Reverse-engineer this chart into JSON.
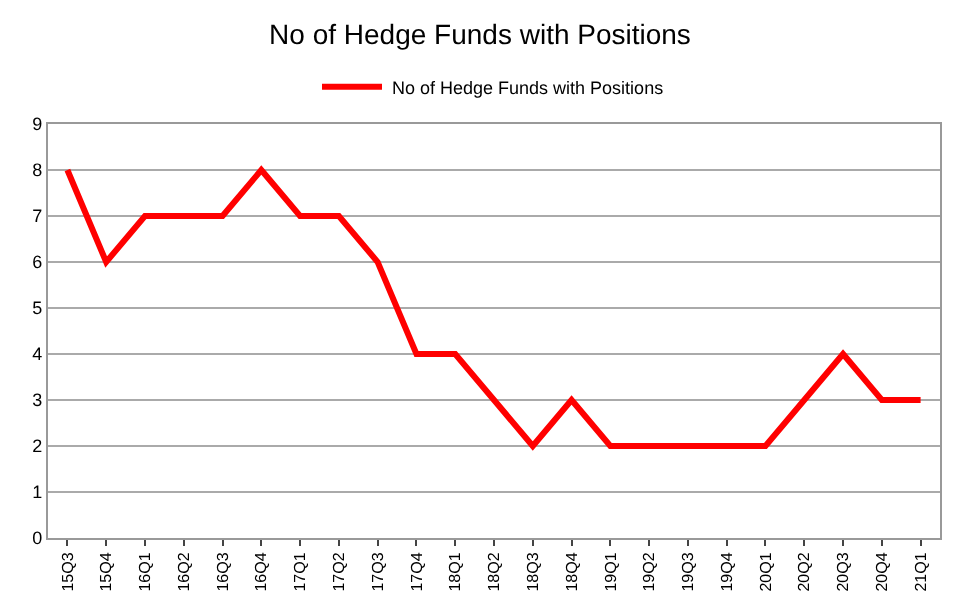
{
  "chart_data": {
    "type": "line",
    "title": "No of Hedge Funds with Positions",
    "categories": [
      "15Q3",
      "15Q4",
      "16Q1",
      "16Q2",
      "16Q3",
      "16Q4",
      "17Q1",
      "17Q2",
      "17Q3",
      "17Q4",
      "18Q1",
      "18Q2",
      "18Q3",
      "18Q4",
      "19Q1",
      "19Q2",
      "19Q3",
      "19Q4",
      "20Q1",
      "20Q2",
      "20Q3",
      "20Q4",
      "21Q1"
    ],
    "series": [
      {
        "name": "No of Hedge Funds with Positions",
        "color": "#ff0000",
        "values": [
          8,
          6,
          7,
          7,
          7,
          8,
          7,
          7,
          6,
          4,
          4,
          3,
          2,
          3,
          2,
          2,
          2,
          2,
          2,
          3,
          4,
          3,
          3
        ]
      }
    ],
    "ylim": [
      0,
      9
    ],
    "yticks": [
      0,
      1,
      2,
      3,
      4,
      5,
      6,
      7,
      8,
      9
    ],
    "grid": "y",
    "legend": "top",
    "marker": "none",
    "line_style": "solid"
  }
}
